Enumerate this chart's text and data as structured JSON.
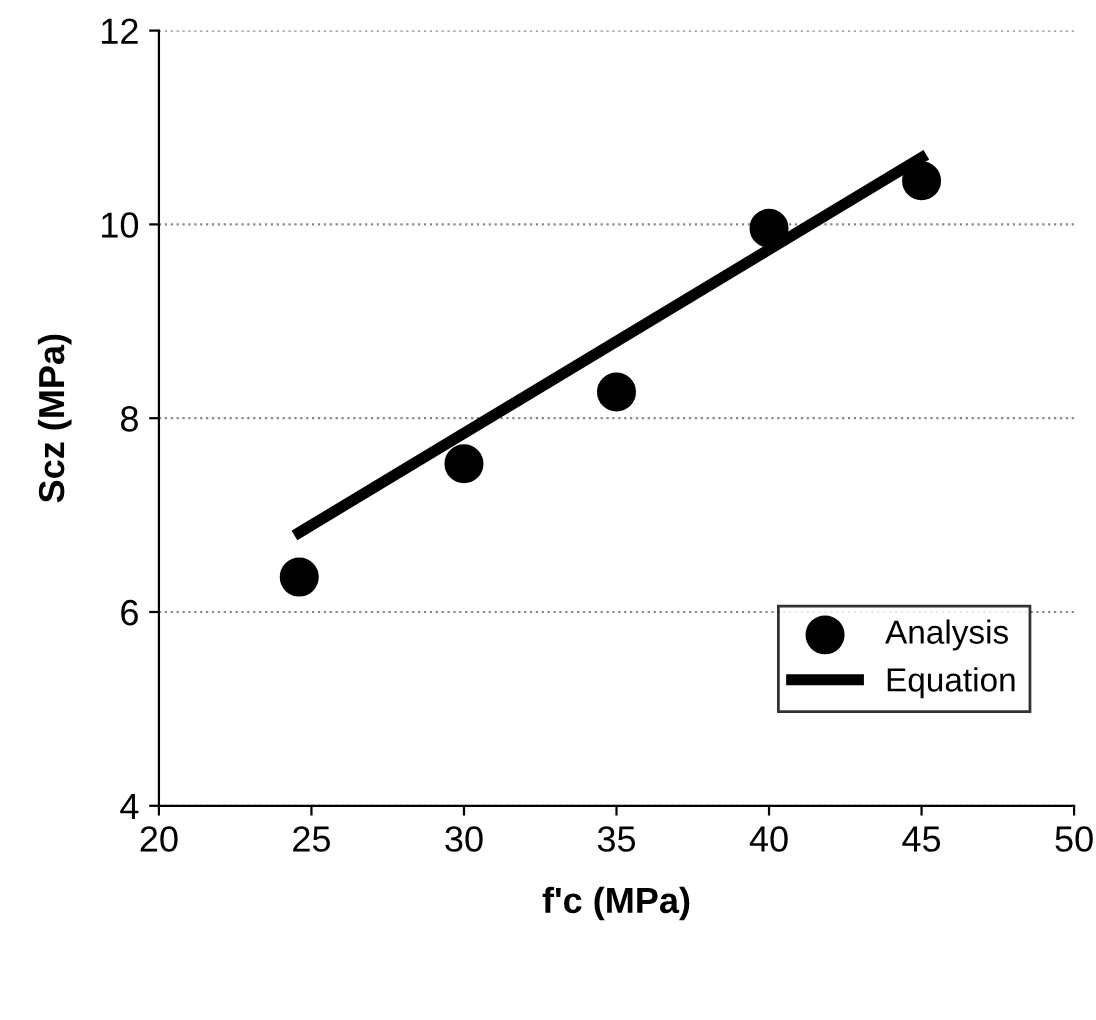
{
  "chart_data": {
    "type": "scatter",
    "xlabel": "f'c (MPa)",
    "ylabel": "Scz (MPa)",
    "series": [
      {
        "name": "Analysis",
        "color": "#000000",
        "marker": "circle",
        "x": [
          24.6,
          30,
          35,
          40,
          45
        ],
        "values": [
          6.36,
          7.53,
          8.27,
          9.96,
          10.45
        ]
      },
      {
        "name": "Equation",
        "type": "line",
        "color": "#000000",
        "marker": "none",
        "line_style": "solid",
        "x": [
          24.6,
          45
        ],
        "values": [
          6.82,
          10.69
        ]
      }
    ],
    "xlim": [
      20,
      50
    ],
    "xticks": [
      20,
      25,
      30,
      35,
      40,
      45,
      50
    ],
    "ylim": [
      4,
      12
    ],
    "yticks": [
      4,
      6,
      8,
      10,
      12
    ],
    "grid": "y",
    "legend": "bottom right"
  }
}
